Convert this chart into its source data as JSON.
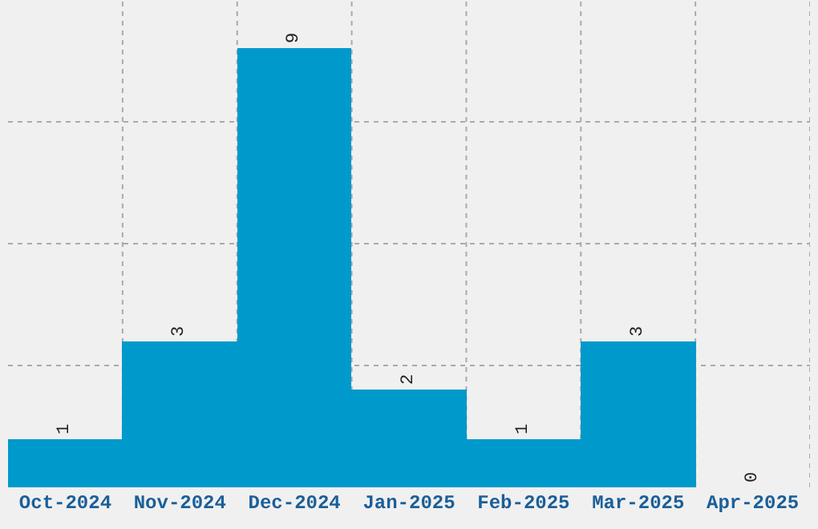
{
  "chart_data": {
    "type": "bar",
    "categories": [
      "Oct-2024",
      "Nov-2024",
      "Dec-2024",
      "Jan-2025",
      "Feb-2025",
      "Mar-2025",
      "Apr-2025"
    ],
    "values": [
      1,
      3,
      9,
      2,
      1,
      3,
      0
    ],
    "color": "#0099cc",
    "ylim": [
      0,
      10
    ],
    "tick_labels": "x",
    "grid": true,
    "data_labels": true,
    "legend": false
  }
}
